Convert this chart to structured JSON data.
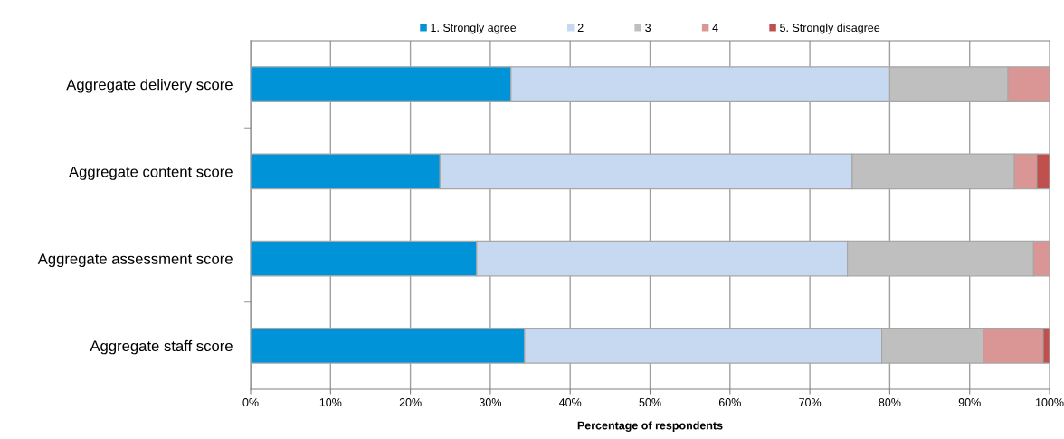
{
  "chart_data": {
    "type": "bar",
    "orientation": "horizontal",
    "stacked": true,
    "xlabel": "Percentage of respondents",
    "categories": [
      "Aggregate delivery score",
      "Aggregate content score",
      "Aggregate assessment score",
      "Aggregate staff score"
    ],
    "series": [
      {
        "name": "1. Strongly agree",
        "color": "#0093d7",
        "values": [
          32.6,
          23.7,
          28.3,
          34.3
        ]
      },
      {
        "name": "2",
        "color": "#c6d9f1",
        "values": [
          47.4,
          51.6,
          46.4,
          44.7
        ]
      },
      {
        "name": "3",
        "color": "#bfbfbf",
        "values": [
          14.8,
          20.3,
          23.3,
          12.7
        ]
      },
      {
        "name": "4",
        "color": "#d99694",
        "values": [
          5.2,
          2.8,
          2.0,
          7.5
        ]
      },
      {
        "name": "5. Strongly disagree",
        "color": "#c0504d",
        "values": [
          null,
          1.6,
          null,
          0.8
        ]
      }
    ],
    "xlim": [
      0,
      100
    ],
    "xticks": [
      {
        "value": 0,
        "label": "0%"
      },
      {
        "value": 10,
        "label": "10%"
      },
      {
        "value": 20,
        "label": "20%"
      },
      {
        "value": 30,
        "label": "30%"
      },
      {
        "value": 40,
        "label": "40%"
      },
      {
        "value": 50,
        "label": "50%"
      },
      {
        "value": 60,
        "label": "60%"
      },
      {
        "value": 70,
        "label": "70%"
      },
      {
        "value": 80,
        "label": "80%"
      },
      {
        "value": 90,
        "label": "90%"
      },
      {
        "value": 100,
        "label": "100%"
      }
    ],
    "grid": "x",
    "legend": "top"
  }
}
